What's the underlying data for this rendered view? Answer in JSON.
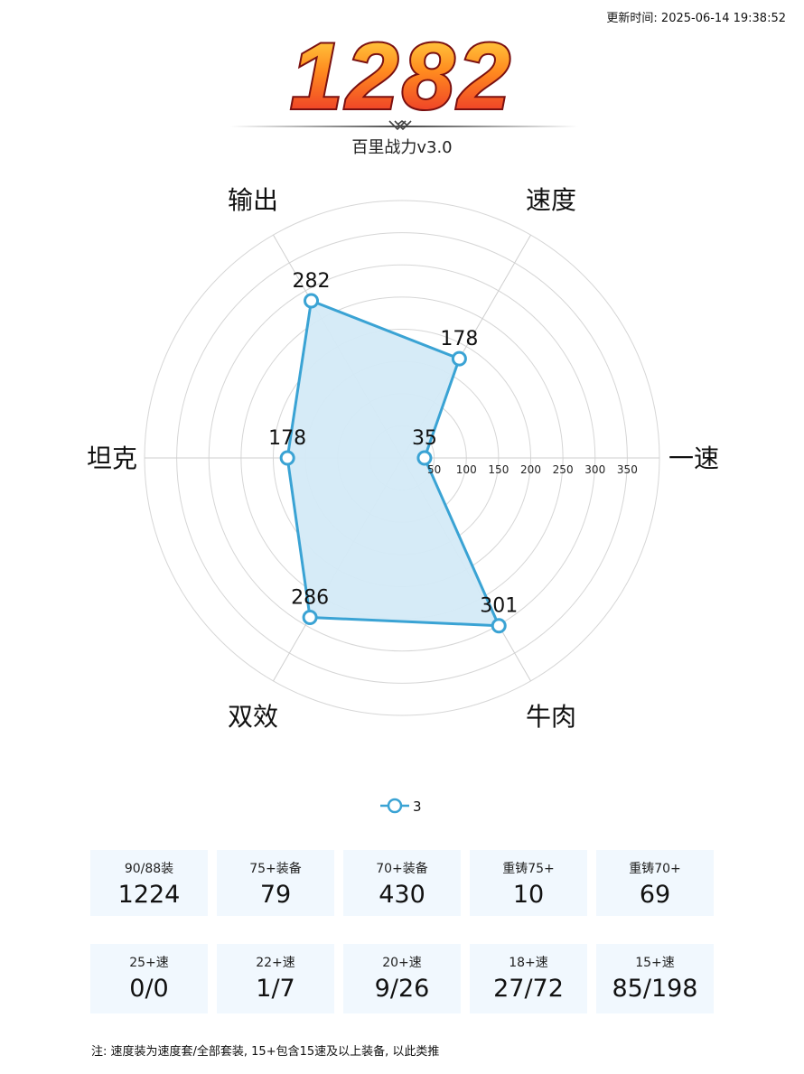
{
  "header": {
    "update_time": "更新时间: 2025-06-14 19:38:52",
    "score": "1282",
    "subtitle": "百里战力v3.0"
  },
  "chart_data": {
    "type": "radar",
    "axes": [
      "一速",
      "速度",
      "输出",
      "坦克",
      "双效",
      "牛肉"
    ],
    "ticks": [
      50,
      100,
      150,
      200,
      250,
      300,
      350
    ],
    "rmax": 400,
    "series": [
      {
        "name": "3",
        "values": [
          35,
          178,
          282,
          178,
          286,
          301
        ],
        "color": "#3aa3d4",
        "fill": "#d4eaf7"
      }
    ],
    "legend": "bottom-center"
  },
  "stats_row1": [
    {
      "label": "90/88装",
      "value": "1224"
    },
    {
      "label": "75+装备",
      "value": "79"
    },
    {
      "label": "70+装备",
      "value": "430"
    },
    {
      "label": "重铸75+",
      "value": "10"
    },
    {
      "label": "重铸70+",
      "value": "69"
    }
  ],
  "stats_row2": [
    {
      "label": "25+速",
      "value": "0/0"
    },
    {
      "label": "22+速",
      "value": "1/7"
    },
    {
      "label": "20+速",
      "value": "9/26"
    },
    {
      "label": "18+速",
      "value": "27/72"
    },
    {
      "label": "15+速",
      "value": "85/198"
    }
  ],
  "footnote": "注: 速度装为速度套/全部套装, 15+包含15速及以上装备, 以此类推"
}
